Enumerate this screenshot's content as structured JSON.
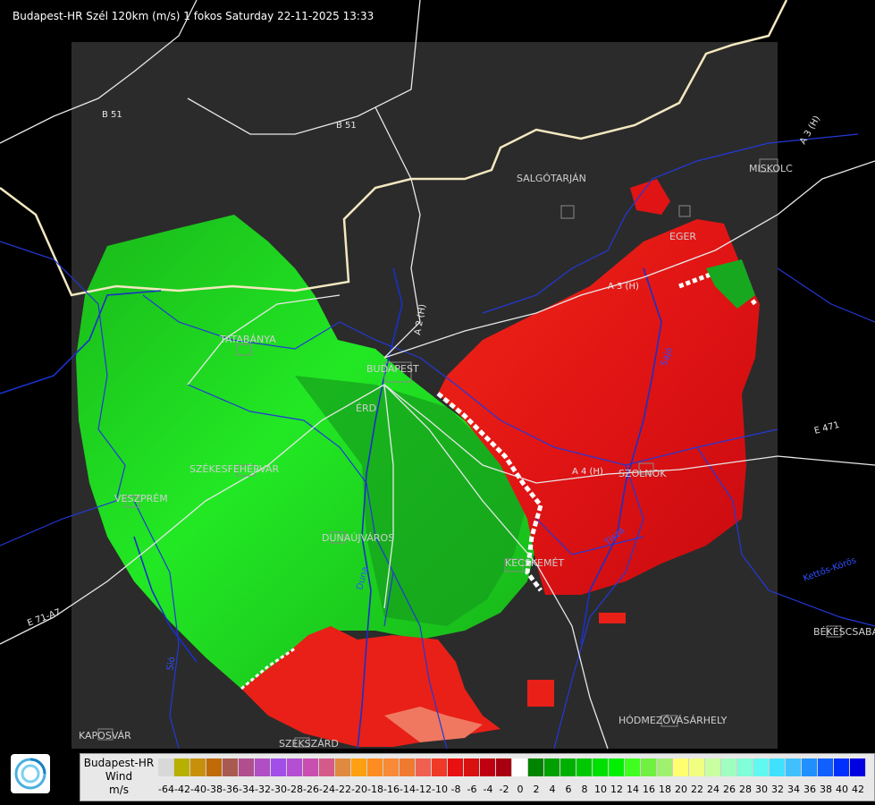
{
  "header": {
    "title": "Budapest-HR Szél 120km (m/s) 1 fokos Saturday 22-11-2025 13:33"
  },
  "map": {
    "cities": [
      "SALGÓTARJÁN",
      "EGER",
      "MISKOLC",
      "TATABÁNYA",
      "BUDAPEST",
      "ÉRD",
      "SZÉKESFEHÉRVÁR",
      "VESZPRÉM",
      "DUNAÚJVÁROS",
      "KECSKEMÉT",
      "SZOLNOK",
      "HÓDMEZŐVÁSÁRHELY",
      "BÉKÉSCSABA",
      "KAPOSVÁR",
      "SZEKSZÁRD"
    ],
    "roads": [
      "B 51",
      "B 51",
      "A 3 (H)",
      "A 3 (H)",
      "A 2 (H)",
      "A 4 (H)",
      "E 471",
      "E 71-A7"
    ],
    "rivers": [
      "Duna",
      "Sió",
      "Tisza",
      "Kettős-Körös",
      "Sajó"
    ]
  },
  "legend": {
    "line1": "Budapest-HR",
    "line2": "Wind",
    "line3": "m/s",
    "ticks": [
      "-64",
      "-42",
      "-40",
      "-38",
      "-36",
      "-34",
      "-32",
      "-30",
      "-28",
      "-26",
      "-24",
      "-22",
      "-20",
      "-18",
      "-16",
      "-14",
      "-12",
      "-10",
      "-8",
      "-6",
      "-4",
      "-2",
      "0",
      "2",
      "4",
      "6",
      "8",
      "10",
      "12",
      "14",
      "16",
      "18",
      "20",
      "22",
      "24",
      "26",
      "28",
      "30",
      "32",
      "34",
      "36",
      "38",
      "40",
      "42"
    ],
    "colors": [
      "#d8d8d8",
      "#b8b000",
      "#c8900a",
      "#c06a08",
      "#a85a50",
      "#b04e8e",
      "#b04ec4",
      "#a24ee8",
      "#b44ed2",
      "#c84eb0",
      "#d45a8a",
      "#e08a40",
      "#ffa010",
      "#ff8c20",
      "#f88a38",
      "#f07a30",
      "#f06050",
      "#f03a28",
      "#e81010",
      "#d81010",
      "#c00010",
      "#a80010",
      "#ffffff",
      "#008400",
      "#00a000",
      "#00b000",
      "#00c800",
      "#00e000",
      "#00f000",
      "#40ff20",
      "#70f040",
      "#a0f070",
      "#ffff70",
      "#f0ff80",
      "#c8ffa0",
      "#a0ffc0",
      "#80ffd8",
      "#60f8f0",
      "#40e0ff",
      "#40c0ff",
      "#2090ff",
      "#1060ff",
      "#0030ff",
      "#0000e0"
    ]
  }
}
